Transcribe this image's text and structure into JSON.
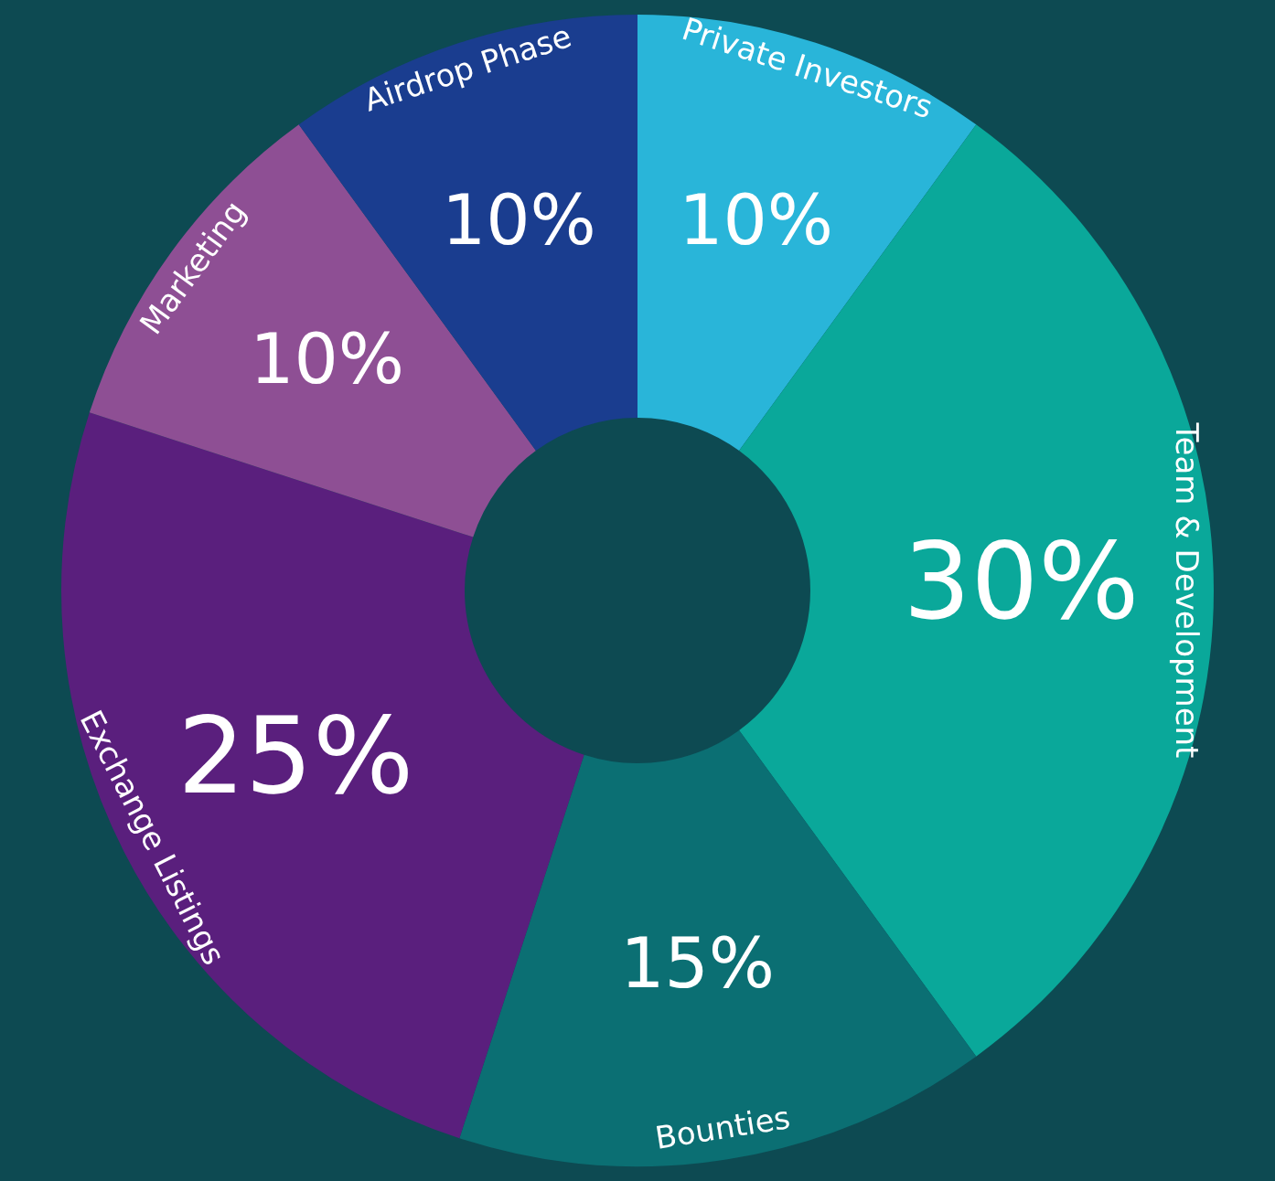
{
  "chart_data": {
    "type": "donut",
    "categories": [
      "Private Investors",
      "Team & Development",
      "Bounties",
      "Exchange Listings",
      "Marketing",
      "Airdrop Phase"
    ],
    "values": [
      10,
      30,
      15,
      25,
      10,
      10
    ],
    "value_labels": [
      "10%",
      "30%",
      "15%",
      "25%",
      "10%",
      "10%"
    ],
    "colors": [
      "#29b5d9",
      "#0aa89a",
      "#0b6f73",
      "#5a1f7d",
      "#8e4f94",
      "#1a3d8f"
    ],
    "legend": false
  }
}
